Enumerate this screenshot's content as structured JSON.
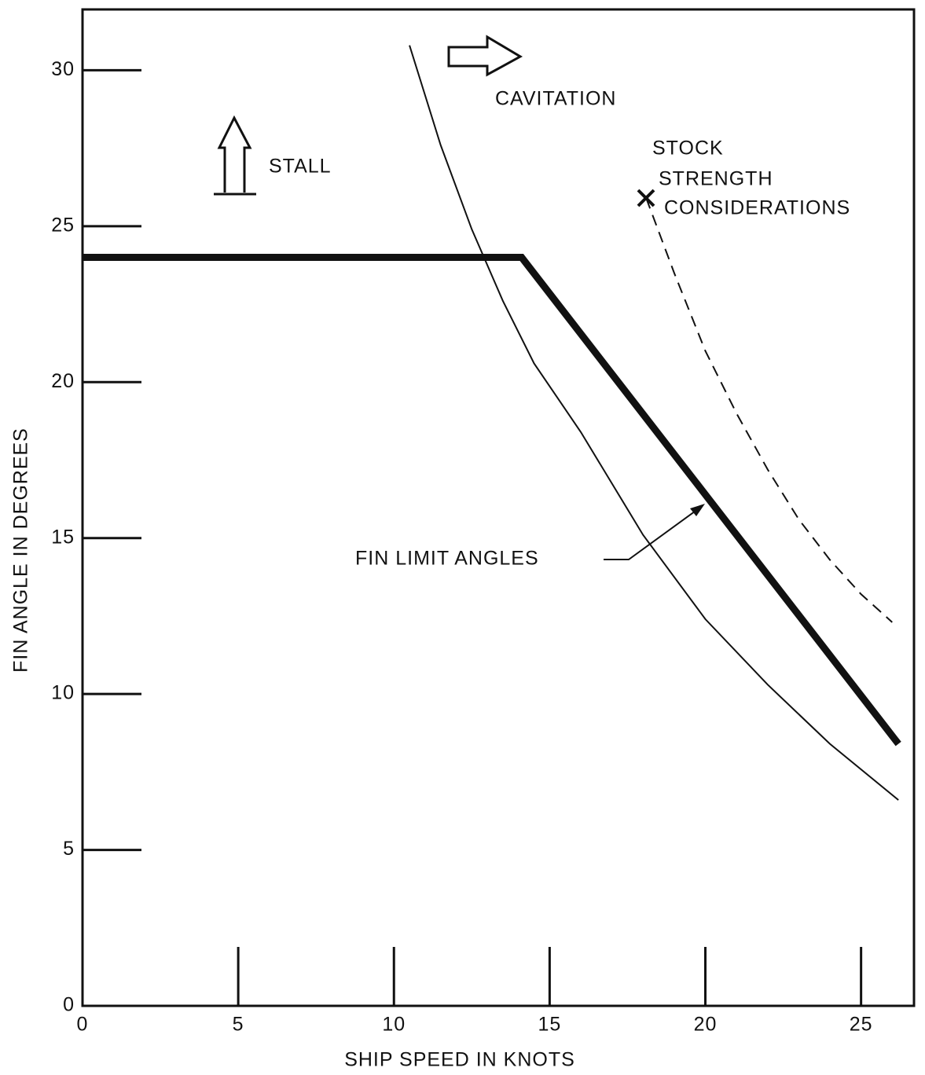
{
  "chart_data": {
    "type": "line",
    "xlabel": "SHIP SPEED IN KNOTS",
    "ylabel": "FIN ANGLE IN DEGREES",
    "xlim": [
      0,
      26.7
    ],
    "ylim": [
      0,
      31.95
    ],
    "xticks": [
      0,
      5,
      10,
      15,
      20,
      25
    ],
    "yticks": [
      0,
      5,
      10,
      15,
      20,
      25,
      30
    ],
    "series": [
      {
        "color": "#111111",
        "width": 9,
        "dash": "none",
        "x": [
          0,
          14.1,
          26.2
        ],
        "values": [
          24,
          24,
          8.4
        ]
      },
      {
        "color": "#111111",
        "width": 2,
        "dash": "none",
        "x": [
          10.5,
          11.5,
          12.5,
          13.5,
          14.5,
          16,
          18,
          20,
          22,
          24,
          26.2
        ],
        "values": [
          30.8,
          27.6,
          24.9,
          22.6,
          20.6,
          18.4,
          15.1,
          12.4,
          10.3,
          8.4,
          6.6
        ]
      },
      {
        "color": "#111111",
        "width": 2,
        "dash": "14 9",
        "x": [
          18.1,
          19,
          20,
          21,
          22,
          23,
          24,
          25,
          26
        ],
        "values": [
          25.9,
          23.5,
          21,
          19,
          17.2,
          15.6,
          14.3,
          13.2,
          12.3
        ]
      }
    ],
    "annotations": {
      "cavitation": "CAVITATION",
      "stall": "STALL",
      "stock": [
        "STOCK",
        "STRENGTH",
        "CONSIDERATIONS"
      ],
      "fin_limit": "FIN LIMIT ANGLES"
    }
  }
}
